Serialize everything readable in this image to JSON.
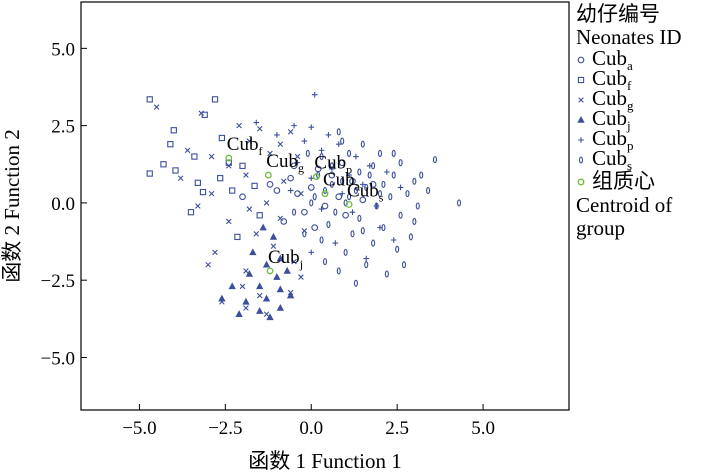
{
  "chart_data": {
    "type": "scatter",
    "xlabel": "函数 1 Function 1",
    "ylabel": "函数 2 Function 2",
    "xlim": [
      -6.7,
      7.5
    ],
    "ylim": [
      -6.7,
      6.5
    ],
    "x_ticks": [
      -5.0,
      -2.5,
      0.0,
      2.5,
      5.0
    ],
    "y_ticks": [
      -5.0,
      -2.5,
      0.0,
      2.5,
      5.0
    ],
    "x_tick_labels": [
      "−5.0",
      "−2.5",
      "0.0",
      "2.5",
      "5.0"
    ],
    "y_tick_labels": [
      "−5.0",
      "−2.5",
      "0.0",
      "2.5",
      "5.0"
    ],
    "grid": false,
    "legend": {
      "placement": "right",
      "title_cn": "幼仔编号",
      "title_en": "Neonates ID",
      "entries": [
        {
          "base": "Cub",
          "sub": "a",
          "marker": "circle"
        },
        {
          "base": "Cub",
          "sub": "f",
          "marker": "square"
        },
        {
          "base": "Cub",
          "sub": "g",
          "marker": "x"
        },
        {
          "base": "Cub",
          "sub": "j",
          "marker": "triangle"
        },
        {
          "base": "Cub",
          "sub": "p",
          "marker": "plus"
        },
        {
          "base": "Cub",
          "sub": "s",
          "marker": "ellipse"
        }
      ],
      "centroid_cn": "组质心",
      "centroid_en_1": "Centroid of",
      "centroid_en_2": "group"
    },
    "colors": {
      "points": "#3d4f9c",
      "centroid": "#6cbf3a"
    },
    "series": [
      {
        "name": "Cub_a",
        "marker": "circle",
        "points": [
          [
            -1.2,
            0.6
          ],
          [
            -1.0,
            0.4
          ],
          [
            -0.6,
            0.8
          ],
          [
            -0.4,
            0.3
          ],
          [
            -0.2,
            -0.3
          ],
          [
            0.0,
            0.5
          ],
          [
            0.2,
            1.1
          ],
          [
            0.4,
            -0.1
          ],
          [
            0.6,
            0.9
          ],
          [
            0.8,
            0.2
          ],
          [
            1.0,
            -0.4
          ],
          [
            1.2,
            0.7
          ],
          [
            1.5,
            0.1
          ],
          [
            -0.8,
            -0.6
          ],
          [
            0.1,
            -0.8
          ],
          [
            -0.5,
            1.2
          ],
          [
            0.9,
            1.3
          ],
          [
            -2.0,
            0.2
          ],
          [
            1.8,
            0.6
          ]
        ]
      },
      {
        "name": "Cub_f",
        "marker": "square",
        "points": [
          [
            -4.7,
            3.35
          ],
          [
            -2.8,
            3.35
          ],
          [
            -3.1,
            2.85
          ],
          [
            -4.0,
            2.35
          ],
          [
            -2.6,
            2.1
          ],
          [
            -4.1,
            1.9
          ],
          [
            -3.4,
            1.5
          ],
          [
            -4.3,
            1.25
          ],
          [
            -3.95,
            1.05
          ],
          [
            -2.4,
            1.3
          ],
          [
            -2.0,
            1.2
          ],
          [
            -4.7,
            0.95
          ],
          [
            -2.65,
            0.8
          ],
          [
            -3.3,
            0.65
          ],
          [
            -2.3,
            0.4
          ],
          [
            -1.65,
            0.55
          ],
          [
            -3.5,
            -0.3
          ],
          [
            -1.5,
            -0.4
          ],
          [
            -2.15,
            -1.1
          ],
          [
            -3.15,
            0.35
          ]
        ]
      },
      {
        "name": "Cub_g",
        "marker": "x",
        "points": [
          [
            -4.5,
            3.1
          ],
          [
            -3.2,
            2.9
          ],
          [
            -2.1,
            2.5
          ],
          [
            -1.5,
            2.4
          ],
          [
            -0.6,
            2.3
          ],
          [
            -1.8,
            2.0
          ],
          [
            -0.9,
            1.9
          ],
          [
            -3.6,
            1.7
          ],
          [
            -2.9,
            1.5
          ],
          [
            -1.2,
            1.6
          ],
          [
            -2.4,
            1.2
          ],
          [
            -0.4,
            1.5
          ],
          [
            -3.8,
            0.8
          ],
          [
            -1.9,
            0.9
          ],
          [
            -0.8,
            0.7
          ],
          [
            -2.9,
            0.3
          ],
          [
            -1.3,
            0.0
          ],
          [
            -0.3,
            0.3
          ],
          [
            -3.3,
            -0.1
          ],
          [
            -1.8,
            -0.2
          ],
          [
            -2.4,
            -0.6
          ],
          [
            -0.9,
            -0.5
          ],
          [
            -1.6,
            -1.0
          ],
          [
            -0.2,
            -0.9
          ],
          [
            -2.8,
            -1.6
          ],
          [
            -1.1,
            -1.4
          ],
          [
            -0.5,
            -1.9
          ],
          [
            -3.0,
            -2.0
          ],
          [
            -1.9,
            -2.2
          ],
          [
            -0.3,
            -2.4
          ],
          [
            -2.0,
            -2.7
          ],
          [
            -0.6,
            -2.9
          ],
          [
            -1.5,
            -3.0
          ],
          [
            -2.6,
            -3.2
          ],
          [
            -1.9,
            -3.4
          ],
          [
            -1.3,
            -3.6
          ]
        ]
      },
      {
        "name": "Cub_j",
        "marker": "triangle",
        "points": [
          [
            -1.4,
            -0.8
          ],
          [
            -1.1,
            -1.1
          ],
          [
            -1.7,
            -1.6
          ],
          [
            -0.9,
            -1.8
          ],
          [
            -1.3,
            -2.0
          ],
          [
            -1.8,
            -2.3
          ],
          [
            -1.0,
            -2.4
          ],
          [
            -0.7,
            -2.2
          ],
          [
            -2.3,
            -2.7
          ],
          [
            -1.5,
            -2.7
          ],
          [
            -0.9,
            -2.8
          ],
          [
            -2.6,
            -3.1
          ],
          [
            -1.9,
            -3.2
          ],
          [
            -1.3,
            -3.1
          ],
          [
            -0.6,
            -3.0
          ],
          [
            -2.1,
            -3.6
          ],
          [
            -1.5,
            -3.5
          ],
          [
            -0.9,
            -3.4
          ],
          [
            -1.2,
            -3.7
          ]
        ]
      },
      {
        "name": "Cub_p",
        "marker": "plus",
        "points": [
          [
            0.1,
            3.5
          ],
          [
            -1.6,
            2.6
          ],
          [
            -0.5,
            2.5
          ],
          [
            -1.0,
            2.2
          ],
          [
            0.0,
            2.45
          ],
          [
            0.5,
            2.2
          ],
          [
            -0.2,
            2.0
          ],
          [
            0.8,
            1.9
          ],
          [
            1.3,
            1.5
          ],
          [
            0.3,
            1.7
          ],
          [
            1.7,
            1.2
          ],
          [
            -0.4,
            1.3
          ],
          [
            0.6,
            1.1
          ],
          [
            1.1,
            0.9
          ],
          [
            2.2,
            1.0
          ],
          [
            0.0,
            0.8
          ],
          [
            1.5,
            0.6
          ],
          [
            0.9,
            0.3
          ],
          [
            2.6,
            0.5
          ],
          [
            1.9,
            -0.1
          ],
          [
            -0.6,
            0.4
          ],
          [
            1.2,
            -0.3
          ],
          [
            0.3,
            -0.2
          ],
          [
            2.0,
            -0.8
          ],
          [
            0.7,
            -1.3
          ],
          [
            1.6,
            -1.8
          ],
          [
            0.0,
            -1.6
          ],
          [
            2.4,
            -1.2
          ]
        ]
      },
      {
        "name": "Cub_s",
        "marker": "ellipse",
        "points": [
          [
            0.9,
            2.0
          ],
          [
            1.5,
            1.9
          ],
          [
            2.0,
            1.6
          ],
          [
            2.6,
            1.3
          ],
          [
            0.3,
            1.5
          ],
          [
            1.1,
            1.6
          ],
          [
            1.8,
            1.2
          ],
          [
            2.4,
            0.9
          ],
          [
            3.0,
            0.7
          ],
          [
            0.6,
            1.2
          ],
          [
            1.4,
            1.0
          ],
          [
            2.1,
            0.6
          ],
          [
            2.8,
            0.3
          ],
          [
            3.6,
            1.4
          ],
          [
            0.2,
            0.9
          ],
          [
            0.9,
            0.7
          ],
          [
            1.6,
            0.5
          ],
          [
            2.3,
            0.2
          ],
          [
            3.1,
            -0.1
          ],
          [
            4.3,
            0.0
          ],
          [
            0.4,
            0.4
          ],
          [
            1.1,
            0.2
          ],
          [
            1.9,
            -0.1
          ],
          [
            2.6,
            -0.4
          ],
          [
            3.4,
            0.4
          ],
          [
            0.7,
            -0.3
          ],
          [
            1.4,
            -0.5
          ],
          [
            2.1,
            -0.8
          ],
          [
            2.9,
            -1.1
          ],
          [
            0.0,
            0.0
          ],
          [
            0.5,
            -0.7
          ],
          [
            1.2,
            -1.0
          ],
          [
            1.8,
            -1.3
          ],
          [
            2.5,
            -1.5
          ],
          [
            0.3,
            -1.2
          ],
          [
            1.0,
            -1.6
          ],
          [
            1.6,
            -2.0
          ],
          [
            2.2,
            -2.3
          ],
          [
            0.8,
            -2.2
          ],
          [
            1.3,
            -2.6
          ],
          [
            0.4,
            -1.9
          ],
          [
            -0.2,
            -1.0
          ],
          [
            -0.5,
            -0.3
          ],
          [
            2.7,
            -2.0
          ],
          [
            3.0,
            -0.6
          ],
          [
            1.7,
            0.9
          ],
          [
            2.4,
            1.6
          ],
          [
            0.8,
            2.3
          ],
          [
            -0.1,
            1.6
          ],
          [
            1.0,
            0.0
          ],
          [
            0.1,
            0.2
          ],
          [
            2.0,
            0.3
          ],
          [
            1.5,
            -0.9
          ],
          [
            3.2,
            0.9
          ],
          [
            0.6,
            0.6
          ],
          [
            1.3,
            0.4
          ]
        ]
      }
    ],
    "centroids": [
      {
        "base": "Cub",
        "sub": "f",
        "x": -2.4,
        "y": 1.45
      },
      {
        "base": "Cub",
        "sub": "g",
        "x": -1.25,
        "y": 0.9
      },
      {
        "base": "Cub",
        "sub": "p",
        "x": 0.15,
        "y": 0.85
      },
      {
        "base": "Cub",
        "sub": "a",
        "x": 0.4,
        "y": 0.3
      },
      {
        "base": "Cub",
        "sub": "s",
        "x": 1.1,
        "y": -0.05
      },
      {
        "base": "Cub",
        "sub": "j",
        "x": -1.2,
        "y": -2.2
      }
    ]
  }
}
